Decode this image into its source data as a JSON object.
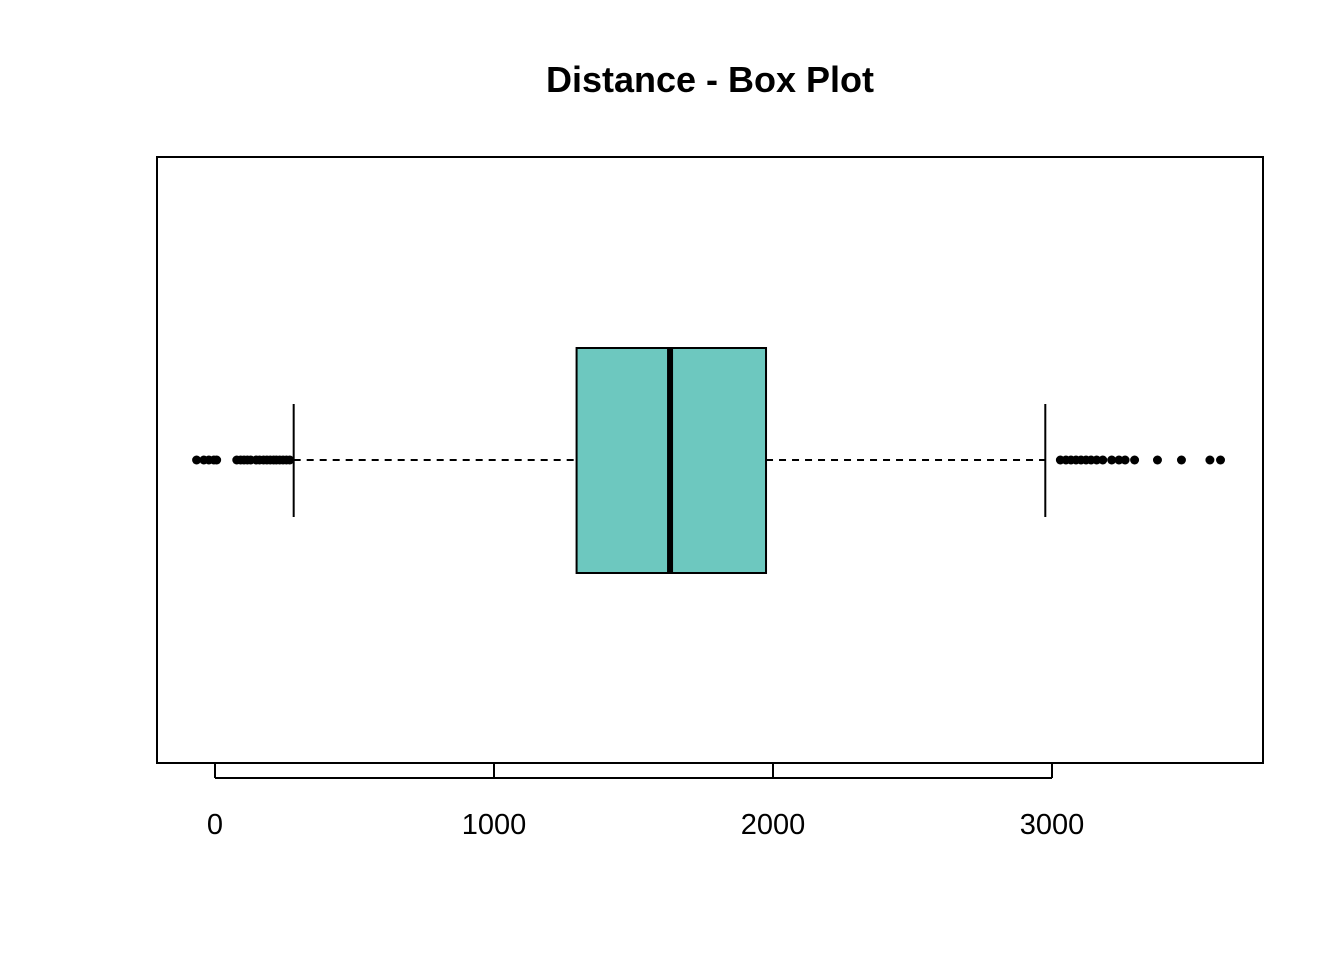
{
  "chart_data": {
    "type": "boxplot",
    "orientation": "horizontal",
    "title": "Distance - Box Plot",
    "xlabel": "",
    "ylabel": "",
    "xlim": [
      -200,
      3750
    ],
    "xticks": [
      0,
      1000,
      2000,
      3000
    ],
    "xtick_labels": [
      "0",
      "1000",
      "2000",
      "3000"
    ],
    "box": {
      "q1": 1296,
      "median": 1631,
      "q3": 1975,
      "whisker_low": 282,
      "whisker_high": 2976
    },
    "outliers": [
      -66,
      -40,
      -22,
      -4,
      6,
      78,
      92,
      104,
      116,
      128,
      148,
      160,
      174,
      186,
      198,
      210,
      220,
      232,
      244,
      256,
      268,
      3030,
      3050,
      3068,
      3086,
      3104,
      3122,
      3140,
      3160,
      3182,
      3214,
      3240,
      3262,
      3296,
      3378,
      3464,
      3566,
      3604
    ],
    "fill_color": "#6dc8bf",
    "grid": false
  }
}
